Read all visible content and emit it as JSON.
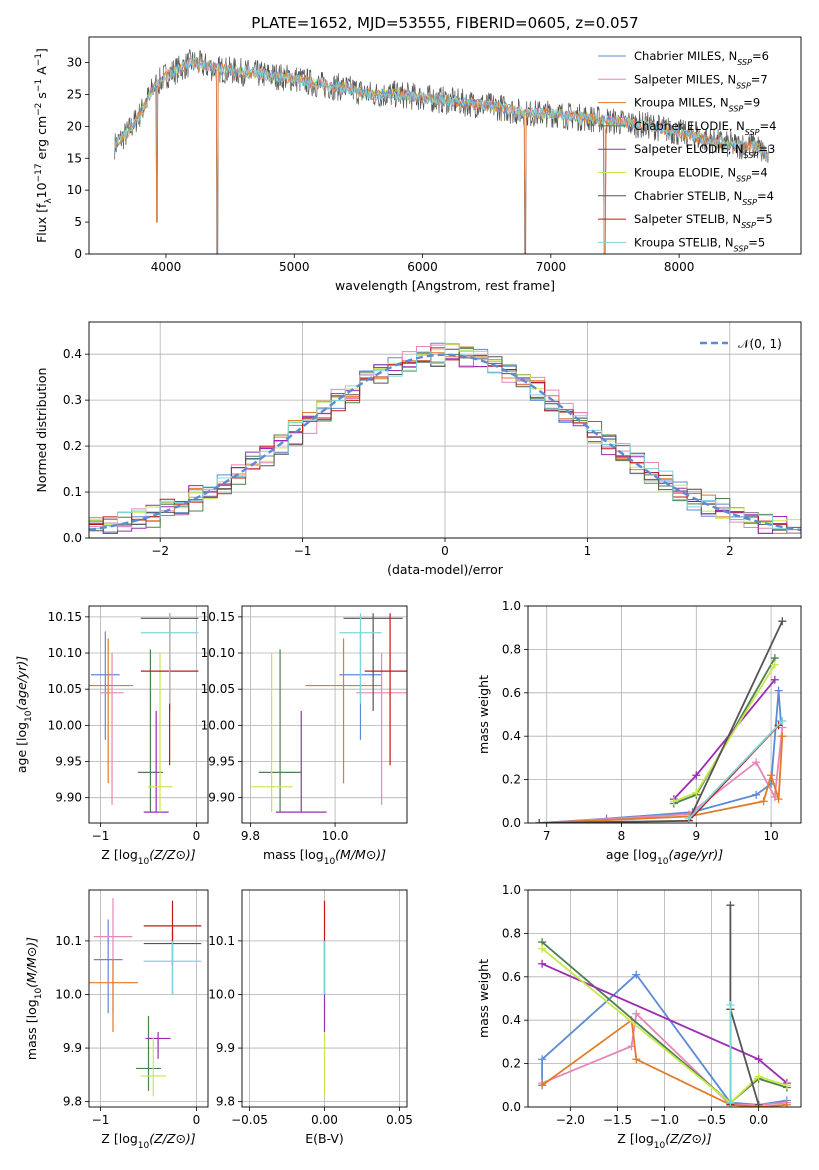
{
  "figure_title": "PLATE=1652, MJD=53555, FIBERID=0605, z=0.057",
  "colors": {
    "Chabrier MILES": "#5b8bd6",
    "Salpeter MILES": "#e886b9",
    "Kroupa MILES": "#e07b28",
    "Chabrier ELODIE": "#4f7f4f",
    "Salpeter ELODIE": "#9b2bb3",
    "Kroupa ELODIE": "#c6e84a",
    "Chabrier STELIB": "#555555",
    "Salpeter STELIB": "#c01818",
    "Kroupa STELIB": "#7fd4dc"
  },
  "chart_data": [
    {
      "id": "spectrum",
      "type": "line",
      "title": "PLATE=1652, MJD=53555, FIBERID=0605, z=0.057",
      "xlabel": "wavelength [Angstrom, rest frame]",
      "ylabel": "Flux [f_λ 10^-17 erg cm^-2 s^-1 A^-1]",
      "xlim": [
        3400,
        8950
      ],
      "ylim": [
        0,
        34
      ],
      "xticks": [
        4000,
        5000,
        6000,
        7000,
        8000
      ],
      "yticks": [
        0,
        5,
        10,
        15,
        20,
        25,
        30
      ],
      "legend": "top-right",
      "legend_entries": [
        "Chabrier MILES, N_SSP=6",
        "Salpeter MILES, N_SSP=7",
        "Kroupa MILES, N_SSP=9",
        "Chabrier ELODIE, N_SSP=4",
        "Salpeter ELODIE, N_SSP=3",
        "Kroupa ELODIE, N_SSP=4",
        "Chabrier STELIB, N_SSP=4",
        "Salpeter STELIB, N_SSP=5",
        "Kroupa STELIB, N_SSP=5"
      ],
      "continuum_x": [
        3600,
        3700,
        3800,
        3900,
        4000,
        4100,
        4200,
        4400,
        4600,
        4800,
        5000,
        5200,
        5400,
        5600,
        5800,
        6000,
        6200,
        6400,
        6600,
        6800,
        7000,
        7200,
        7400,
        7600,
        7800,
        8000,
        8200,
        8400,
        8600,
        8700
      ],
      "continuum_y": [
        17,
        19,
        22,
        26,
        28,
        29,
        30,
        29,
        28.5,
        28,
        27.5,
        26.5,
        26,
        25,
        25,
        24.5,
        24,
        23.5,
        23,
        22,
        22,
        21.5,
        21,
        20.5,
        20,
        19,
        18,
        17,
        17,
        15
      ],
      "absorption_features": [
        {
          "x": 3930,
          "y": 5
        },
        {
          "x": 4400,
          "y": 0
        },
        {
          "x": 6800,
          "y": 0
        },
        {
          "x": 7420,
          "y": 0
        }
      ],
      "grid": false
    },
    {
      "id": "residuals",
      "type": "step",
      "xlabel": "(data-model)/error",
      "ylabel": "Normed distribution",
      "xlim": [
        -2.5,
        2.5
      ],
      "ylim": [
        0,
        0.47
      ],
      "xticks": [
        -2,
        -1,
        0,
        1,
        2
      ],
      "yticks": [
        0.0,
        0.1,
        0.2,
        0.3,
        0.4
      ],
      "legend": "top-right",
      "legend_entries": [
        "𝒩(0, 1)"
      ],
      "reference_curve": "normal(0,1)",
      "bin_width": 0.1,
      "series": [
        {
          "name": "Chabrier MILES",
          "offset": 0.01
        },
        {
          "name": "Salpeter MILES",
          "offset": -0.01
        },
        {
          "name": "Kroupa MILES",
          "offset": 0.02
        },
        {
          "name": "Chabrier ELODIE",
          "offset": -0.02
        },
        {
          "name": "Salpeter ELODIE",
          "offset": 0.03
        },
        {
          "name": "Kroupa ELODIE",
          "offset": 0.015
        },
        {
          "name": "Chabrier STELIB",
          "offset": -0.015
        },
        {
          "name": "Salpeter STELIB",
          "offset": 0.0
        },
        {
          "name": "Kroupa STELIB",
          "offset": -0.005
        }
      ],
      "grid": true
    },
    {
      "id": "age_vs_Z",
      "type": "errorbar",
      "xlabel": "Z [log10(Z/Z⊙)]",
      "ylabel": "age [log10(age/yr)]",
      "xlim": [
        -1.12,
        0.12
      ],
      "ylim": [
        9.865,
        10.165
      ],
      "xticks": [
        -1,
        0
      ],
      "yticks": [
        9.9,
        9.95,
        10.0,
        10.05,
        10.1,
        10.15
      ],
      "points": [
        {
          "series": "Chabrier MILES",
          "x": -0.95,
          "xerr": 0.15,
          "y": 10.07,
          "ylo": 9.98,
          "yhi": 10.13
        },
        {
          "series": "Salpeter MILES",
          "x": -0.88,
          "xerr": 0.12,
          "y": 10.045,
          "ylo": 9.89,
          "yhi": 10.1
        },
        {
          "series": "Kroupa MILES",
          "x": -0.92,
          "xerr": 0.26,
          "y": 10.055,
          "ylo": 9.92,
          "yhi": 10.12
        },
        {
          "series": "Chabrier ELODIE",
          "x": -0.48,
          "xerr": 0.13,
          "y": 9.935,
          "ylo": 9.88,
          "yhi": 10.105
        },
        {
          "series": "Salpeter ELODIE",
          "x": -0.42,
          "xerr": 0.13,
          "y": 9.88,
          "ylo": 9.88,
          "yhi": 10.02
        },
        {
          "series": "Kroupa ELODIE",
          "x": -0.38,
          "xerr": 0.13,
          "y": 9.915,
          "ylo": 9.88,
          "yhi": 10.1
        },
        {
          "series": "Chabrier STELIB",
          "x": -0.28,
          "xerr": 0.3,
          "y": 10.148,
          "ylo": 10.02,
          "yhi": 10.155
        },
        {
          "series": "Salpeter STELIB",
          "x": -0.28,
          "xerr": 0.3,
          "y": 10.075,
          "ylo": 9.945,
          "yhi": 10.155
        },
        {
          "series": "Kroupa STELIB",
          "x": -0.28,
          "xerr": 0.3,
          "y": 10.128,
          "ylo": 10.03,
          "yhi": 10.155
        }
      ],
      "grid": true
    },
    {
      "id": "age_vs_mass",
      "type": "errorbar",
      "xlabel": "mass [log10(M/M⊙)]",
      "ylabel": "",
      "xlim": [
        9.78,
        10.17
      ],
      "ylim": [
        9.865,
        10.165
      ],
      "xticks": [
        9.8,
        10.0
      ],
      "yticks": [
        9.9,
        9.95,
        10.0,
        10.05,
        10.1,
        10.15
      ],
      "points": [
        {
          "series": "Chabrier MILES",
          "x": 10.06,
          "xerr": 0.05,
          "y": 10.07,
          "ylo": 9.98,
          "yhi": 10.13
        },
        {
          "series": "Salpeter MILES",
          "x": 10.11,
          "xerr": 0.06,
          "y": 10.045,
          "ylo": 9.89,
          "yhi": 10.1
        },
        {
          "series": "Kroupa MILES",
          "x": 10.02,
          "xerr": 0.09,
          "y": 10.055,
          "ylo": 9.92,
          "yhi": 10.12
        },
        {
          "series": "Chabrier ELODIE",
          "x": 9.87,
          "xerr": 0.05,
          "y": 9.935,
          "ylo": 9.88,
          "yhi": 10.105
        },
        {
          "series": "Salpeter ELODIE",
          "x": 9.92,
          "xerr": 0.06,
          "y": 9.88,
          "ylo": 9.88,
          "yhi": 10.02
        },
        {
          "series": "Kroupa ELODIE",
          "x": 9.85,
          "xerr": 0.05,
          "y": 9.915,
          "ylo": 9.88,
          "yhi": 10.1
        },
        {
          "series": "Chabrier STELIB",
          "x": 10.09,
          "xerr": 0.07,
          "y": 10.148,
          "ylo": 10.02,
          "yhi": 10.155
        },
        {
          "series": "Salpeter STELIB",
          "x": 10.13,
          "xerr": 0.06,
          "y": 10.075,
          "ylo": 9.945,
          "yhi": 10.155
        },
        {
          "series": "Kroupa STELIB",
          "x": 10.06,
          "xerr": 0.05,
          "y": 10.128,
          "ylo": 10.03,
          "yhi": 10.155
        }
      ],
      "grid": true
    },
    {
      "id": "weight_vs_age",
      "type": "line",
      "xlabel": "age [log10(age/yr)]",
      "ylabel": "mass weight",
      "xlim": [
        6.75,
        10.4
      ],
      "ylim": [
        0,
        1.0
      ],
      "xticks": [
        7,
        8,
        9,
        10
      ],
      "yticks": [
        0.0,
        0.2,
        0.4,
        0.6,
        0.8,
        1.0
      ],
      "series": [
        {
          "name": "Chabrier MILES",
          "x": [
            6.9,
            7.8,
            8.95,
            9.8,
            10.0,
            10.1,
            10.13
          ],
          "y": [
            0.0,
            0.02,
            0.05,
            0.13,
            0.18,
            0.61,
            0.47
          ]
        },
        {
          "name": "Salpeter MILES",
          "x": [
            6.9,
            8.9,
            9.8,
            10.05,
            10.15
          ],
          "y": [
            0.0,
            0.04,
            0.28,
            0.12,
            0.44
          ]
        },
        {
          "name": "Kroupa MILES",
          "x": [
            6.9,
            8.9,
            9.9,
            10.0,
            10.1,
            10.15
          ],
          "y": [
            0.0,
            0.03,
            0.1,
            0.22,
            0.11,
            0.4
          ]
        },
        {
          "name": "Chabrier ELODIE",
          "x": [
            8.7,
            9.0,
            10.05
          ],
          "y": [
            0.09,
            0.13,
            0.76
          ]
        },
        {
          "name": "Salpeter ELODIE",
          "x": [
            8.7,
            9.0,
            10.05
          ],
          "y": [
            0.11,
            0.22,
            0.66
          ]
        },
        {
          "name": "Kroupa ELODIE",
          "x": [
            8.7,
            9.0,
            10.05
          ],
          "y": [
            0.1,
            0.14,
            0.73
          ]
        },
        {
          "name": "Chabrier STELIB",
          "x": [
            6.9,
            8.9,
            10.15
          ],
          "y": [
            0.0,
            0.01,
            0.93
          ]
        },
        {
          "name": "Salpeter STELIB",
          "x": [
            8.9,
            10.1
          ],
          "y": [
            0.01,
            0.45
          ]
        },
        {
          "name": "Kroupa STELIB",
          "x": [
            8.9,
            10.15
          ],
          "y": [
            0.02,
            0.47
          ]
        }
      ],
      "grid": true
    },
    {
      "id": "mass_vs_Z",
      "type": "errorbar",
      "xlabel": "Z [log10(Z/Z⊙)]",
      "ylabel": "mass [log10(M/M⊙)]",
      "xlim": [
        -1.12,
        0.12
      ],
      "ylim": [
        9.79,
        10.195
      ],
      "xticks": [
        -1,
        0
      ],
      "yticks": [
        9.8,
        9.9,
        10.0,
        10.1
      ],
      "points": [
        {
          "series": "Chabrier MILES",
          "x": -0.92,
          "xerr": 0.15,
          "y": 10.065,
          "ylo": 9.965,
          "yhi": 10.14
        },
        {
          "series": "Salpeter MILES",
          "x": -0.87,
          "xerr": 0.2,
          "y": 10.108,
          "ylo": 9.965,
          "yhi": 10.18
        },
        {
          "series": "Kroupa MILES",
          "x": -0.87,
          "xerr": 0.26,
          "y": 10.022,
          "ylo": 9.93,
          "yhi": 10.065
        },
        {
          "series": "Chabrier ELODIE",
          "x": -0.5,
          "xerr": 0.13,
          "y": 9.862,
          "ylo": 9.82,
          "yhi": 9.96
        },
        {
          "series": "Salpeter ELODIE",
          "x": -0.4,
          "xerr": 0.13,
          "y": 9.918,
          "ylo": 9.88,
          "yhi": 9.93
        },
        {
          "series": "Kroupa ELODIE",
          "x": -0.45,
          "xerr": 0.13,
          "y": 9.848,
          "ylo": 9.81,
          "yhi": 9.92
        },
        {
          "series": "Chabrier STELIB",
          "x": -0.25,
          "xerr": 0.3,
          "y": 10.095,
          "ylo": 10.0,
          "yhi": 10.12
        },
        {
          "series": "Salpeter STELIB",
          "x": -0.25,
          "xerr": 0.3,
          "y": 10.128,
          "ylo": 10.055,
          "yhi": 10.175
        },
        {
          "series": "Kroupa STELIB",
          "x": -0.25,
          "xerr": 0.3,
          "y": 10.062,
          "ylo": 10.0,
          "yhi": 10.1
        }
      ],
      "grid": true
    },
    {
      "id": "mass_vs_ebv",
      "type": "errorbar",
      "xlabel": "E(B-V)",
      "ylabel": "",
      "xlim": [
        -0.055,
        0.055
      ],
      "ylim": [
        9.79,
        10.195
      ],
      "xticks": [
        -0.05,
        0.0,
        0.05
      ],
      "yticks": [
        9.8,
        9.9,
        10.0,
        10.1
      ],
      "points": [
        {
          "series": "Salpeter STELIB",
          "x": 0.0,
          "xerr": 0.0,
          "y": 10.1,
          "ylo": 10.0,
          "yhi": 10.175
        },
        {
          "series": "Salpeter ELODIE",
          "x": 0.0,
          "xerr": 0.0,
          "y": 10.0,
          "ylo": 9.93,
          "yhi": 10.1
        },
        {
          "series": "Kroupa ELODIE",
          "x": 0.0,
          "xerr": 0.0,
          "y": 9.9,
          "ylo": 9.81,
          "yhi": 9.93
        },
        {
          "series": "Kroupa STELIB",
          "x": 0.0,
          "xerr": 0.0,
          "y": 10.05,
          "ylo": 10.0,
          "yhi": 10.1
        }
      ],
      "grid": true
    },
    {
      "id": "weight_vs_Z",
      "type": "line",
      "xlabel": "Z [log10(Z/Z⊙)]",
      "ylabel": "mass weight",
      "xlim": [
        -2.45,
        0.45
      ],
      "ylim": [
        0,
        1.0
      ],
      "xticks": [
        -2.0,
        -1.5,
        -1.0,
        -0.5,
        0.0
      ],
      "yticks": [
        0.0,
        0.2,
        0.4,
        0.6,
        0.8,
        1.0
      ],
      "series": [
        {
          "name": "Chabrier MILES",
          "x": [
            -2.3,
            -2.3,
            -1.3,
            -0.3,
            0.0,
            0.3
          ],
          "y": [
            0.1,
            0.22,
            0.61,
            0.02,
            0.01,
            0.03
          ]
        },
        {
          "name": "Salpeter MILES",
          "x": [
            -2.3,
            -1.35,
            -1.3,
            -0.3,
            0.0,
            0.3
          ],
          "y": [
            0.11,
            0.28,
            0.43,
            0.01,
            0.01,
            0.02
          ]
        },
        {
          "name": "Kroupa MILES",
          "x": [
            -2.3,
            -1.35,
            -1.3,
            -0.3,
            0.0,
            0.3
          ],
          "y": [
            0.1,
            0.4,
            0.22,
            0.01,
            0.0,
            0.01
          ]
        },
        {
          "name": "Chabrier ELODIE",
          "x": [
            -2.3,
            -0.3,
            0.0,
            0.3
          ],
          "y": [
            0.76,
            0.02,
            0.13,
            0.09
          ]
        },
        {
          "name": "Salpeter ELODIE",
          "x": [
            -2.3,
            0.0,
            0.3
          ],
          "y": [
            0.66,
            0.22,
            0.11
          ]
        },
        {
          "name": "Kroupa ELODIE",
          "x": [
            -2.3,
            -0.3,
            0.0,
            0.3
          ],
          "y": [
            0.73,
            0.02,
            0.14,
            0.1
          ]
        },
        {
          "name": "Chabrier STELIB",
          "x": [
            -0.3,
            -0.3,
            0.0
          ],
          "y": [
            0.93,
            0.45,
            0.01
          ]
        },
        {
          "name": "Salpeter STELIB",
          "x": [
            -0.3,
            -0.3
          ],
          "y": [
            0.45,
            0.01
          ]
        },
        {
          "name": "Kroupa STELIB",
          "x": [
            -0.3,
            -0.3
          ],
          "y": [
            0.47,
            0.02
          ]
        }
      ],
      "grid": true
    }
  ]
}
